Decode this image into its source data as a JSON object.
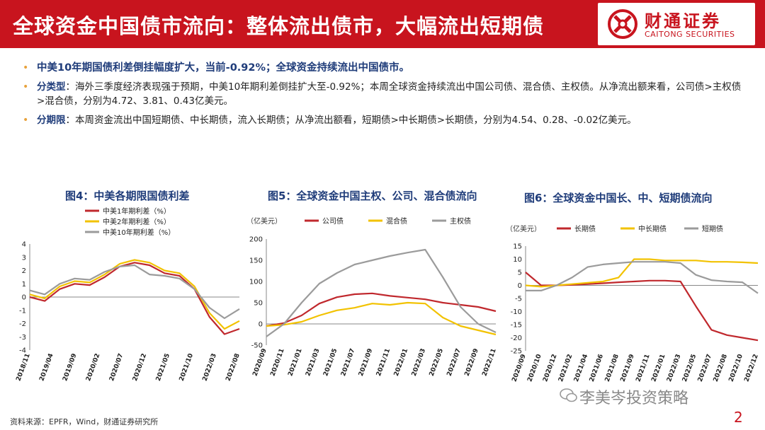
{
  "header": {
    "title": "全球资金中国债市流向：整体流出债市，大幅流出短期债",
    "brand_cn": "财通证券",
    "brand_en": "CAITONG SECURITIES",
    "color": "#c8141e"
  },
  "bullets": [
    {
      "head": "中美10年期国债利差倒挂幅度扩大，当前-0.92%；全球资金持续流出中国债市。",
      "text": ""
    },
    {
      "head": "分类型",
      "sep": "：",
      "text": "海外三季度经济表现强于预期，中美10年期利差倒挂扩大至-0.92%；本周全球资金持续流出中国公司债、混合债、主权债。从净流出额来看，公司债>主权债>混合债，分别为4.72、3.81、0.43亿美元。"
    },
    {
      "head": "分期限",
      "sep": "：",
      "text": "本周资金流出中国短期债、中长期债，流入长期债；从净流出额看，短期债>中长期债>长期债，分别为4.54、0.28、-0.02亿美元。"
    }
  ],
  "chart_data": [
    {
      "type": "line",
      "title": "图4：中美各期限国债利差",
      "unit": "",
      "ylim": [
        -4,
        4
      ],
      "yticks": [
        "4",
        "3",
        "2",
        "1",
        "0",
        "-1",
        "-2",
        "-3",
        "-4"
      ],
      "xticks": [
        "2018/11",
        "2019/04",
        "2019/09",
        "2020/02",
        "2020/07",
        "2020/12",
        "2021/05",
        "2021/10",
        "2022/03",
        "2022/08"
      ],
      "series": [
        {
          "name": "中美1年期利差（%）",
          "color": "#c0282d",
          "values": [
            0,
            -0.3,
            0.6,
            1.0,
            0.9,
            1.5,
            2.3,
            2.6,
            2.4,
            1.8,
            1.6,
            0.6,
            -1.5,
            -2.8,
            -2.4
          ]
        },
        {
          "name": "中美2年期利差（%）",
          "color": "#f2c200",
          "values": [
            0.2,
            -0.1,
            0.8,
            1.2,
            1.1,
            1.7,
            2.5,
            2.8,
            2.6,
            2.0,
            1.8,
            0.8,
            -1.2,
            -2.4,
            -1.8
          ]
        },
        {
          "name": "中美10年期利差（%）",
          "color": "#9b9b9b",
          "values": [
            0.5,
            0.2,
            1.0,
            1.4,
            1.3,
            1.9,
            2.3,
            2.4,
            1.7,
            1.6,
            1.4,
            0.6,
            -0.8,
            -1.6,
            -0.9
          ]
        }
      ]
    },
    {
      "type": "line",
      "title": "图5：全球资金中国主权、公司、混合债流向",
      "unit": "（亿美元）",
      "ylim": [
        -50,
        200
      ],
      "yticks": [
        "200",
        "150",
        "100",
        "50",
        "0",
        "-50"
      ],
      "xticks": [
        "2020/09",
        "2020/11",
        "2021/01",
        "2021/03",
        "2021/05",
        "2021/07",
        "2021/09",
        "2021/11",
        "2022/01",
        "2022/03",
        "2022/05",
        "2022/07",
        "2022/09",
        "2022/11"
      ],
      "series": [
        {
          "name": "公司债",
          "color": "#c0282d",
          "values": [
            -5,
            2,
            20,
            48,
            63,
            70,
            72,
            66,
            62,
            58,
            50,
            45,
            40,
            30
          ]
        },
        {
          "name": "混合债",
          "color": "#f2c200",
          "values": [
            -5,
            -2,
            5,
            20,
            32,
            38,
            48,
            45,
            50,
            48,
            15,
            -5,
            -15,
            -25
          ]
        },
        {
          "name": "主权债",
          "color": "#9b9b9b",
          "values": [
            -30,
            0,
            50,
            95,
            120,
            140,
            150,
            160,
            168,
            175,
            110,
            40,
            0,
            -20
          ]
        }
      ]
    },
    {
      "type": "line",
      "title": "图6：全球资金中国长、中、短期债流向",
      "unit": "（亿美元）",
      "ylim": [
        -25,
        15
      ],
      "yticks": [
        "15",
        "10",
        "5",
        "0",
        "-5",
        "-10",
        "-15",
        "-20",
        "-25"
      ],
      "xticks": [
        "2020/09",
        "2020/10",
        "2020/12",
        "2021/02",
        "2021/04",
        "2021/06",
        "2021/08",
        "2021/09",
        "2021/11",
        "2022/01",
        "2022/03",
        "2022/05",
        "2022/07",
        "2022/08",
        "2022/10",
        "2022/12"
      ],
      "series": [
        {
          "name": "长期债",
          "color": "#c0282d",
          "values": [
            5,
            0,
            0,
            0.2,
            0.5,
            0.8,
            1.2,
            1.5,
            1.8,
            1.8,
            1.5,
            -8,
            -17,
            -19,
            -20,
            -21
          ]
        },
        {
          "name": "中长期债",
          "color": "#f2c200",
          "values": [
            0,
            -0.5,
            0,
            0.5,
            1,
            1.5,
            3,
            10,
            10,
            9.5,
            9.5,
            9.5,
            9,
            9,
            8.8,
            8.5
          ]
        },
        {
          "name": "短期债",
          "color": "#9b9b9b",
          "values": [
            -2,
            -2,
            0,
            3,
            7,
            8,
            8.5,
            9,
            9,
            9,
            8.5,
            4,
            2,
            1.5,
            1.2,
            -3
          ]
        }
      ]
    }
  ],
  "footer": {
    "source": "资料来源：EPFR，Wind，财通证券研究所",
    "watermark": "李美岑投资策略",
    "page": "2"
  }
}
